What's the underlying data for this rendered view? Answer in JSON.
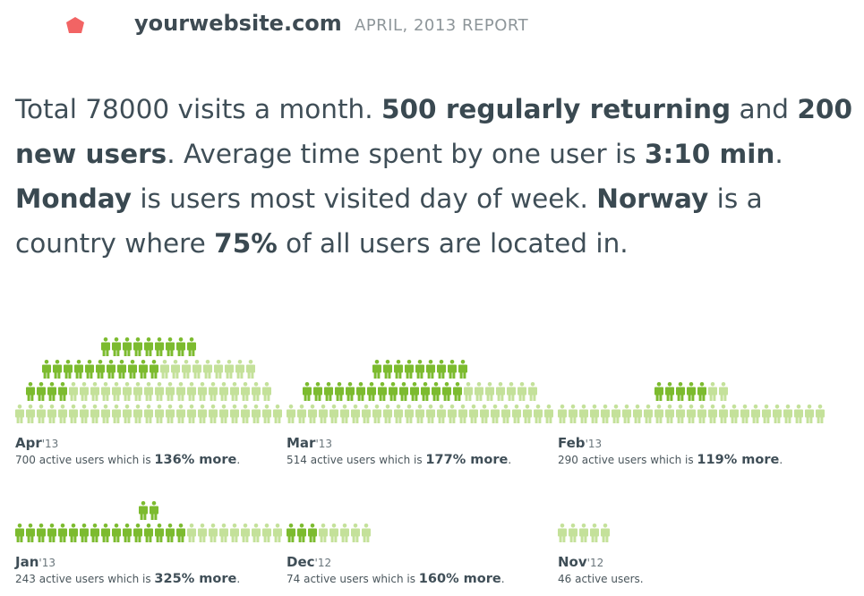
{
  "header": {
    "site": "yourwebsite.com",
    "report": "APRIL, 2013 REPORT",
    "logo_icon": "red-pentagon-icon"
  },
  "summary": {
    "s1": "Total 78000 visits a month. ",
    "b1": "500 regularly returning",
    "s2": " and ",
    "b2": "200 new users",
    "s3": ". Average time spent by one user is ",
    "b3": "3:10 min",
    "s4": ". ",
    "b4": "Monday",
    "s5": " is users most visited day of week. ",
    "b5": "Norway",
    "s6": " is a country where ",
    "b6": "75%",
    "s7": " of all users are located in."
  },
  "colors": {
    "dark_green": "#7cbb2f",
    "light_green": "#c4e19a",
    "logo": "#f26464"
  },
  "months": [
    {
      "month": "Apr",
      "year": "'13",
      "desc_prefix": "700 active users which is ",
      "desc_bold": "136% more",
      "desc_suffix": ".",
      "rows": [
        {
          "dark": 9,
          "light": 0
        },
        {
          "dark": 11,
          "light": 9
        },
        {
          "dark": 4,
          "light": 19
        },
        {
          "dark": 0,
          "light": 25
        }
      ]
    },
    {
      "month": "Mar",
      "year": "'13",
      "desc_prefix": "514 active users which is ",
      "desc_bold": "177% more",
      "desc_suffix": ".",
      "rows": [
        {
          "dark": 9,
          "light": 0
        },
        {
          "dark": 15,
          "light": 7
        },
        {
          "dark": 0,
          "light": 25
        }
      ]
    },
    {
      "month": "Feb",
      "year": "'13",
      "desc_prefix": "290 active users which is ",
      "desc_bold": "119% more",
      "desc_suffix": ".",
      "rows": [
        {
          "dark": 5,
          "light": 2
        },
        {
          "dark": 0,
          "light": 25
        }
      ]
    },
    {
      "month": "Jan",
      "year": "'13",
      "desc_prefix": "243 active users which is ",
      "desc_bold": "325% more",
      "desc_suffix": ".",
      "rows": [
        {
          "dark": 2,
          "light": 0
        },
        {
          "dark": 16,
          "light": 9
        }
      ]
    },
    {
      "month": "Dec",
      "year": "'12",
      "desc_prefix": "74 active users which is ",
      "desc_bold": "160% more",
      "desc_suffix": ".",
      "rows": [
        {
          "dark": 3,
          "light": 5
        }
      ]
    },
    {
      "month": "Nov",
      "year": "'12",
      "desc_prefix": "46 active users.",
      "desc_bold": "",
      "desc_suffix": "",
      "rows": [
        {
          "dark": 0,
          "light": 5
        }
      ]
    }
  ]
}
